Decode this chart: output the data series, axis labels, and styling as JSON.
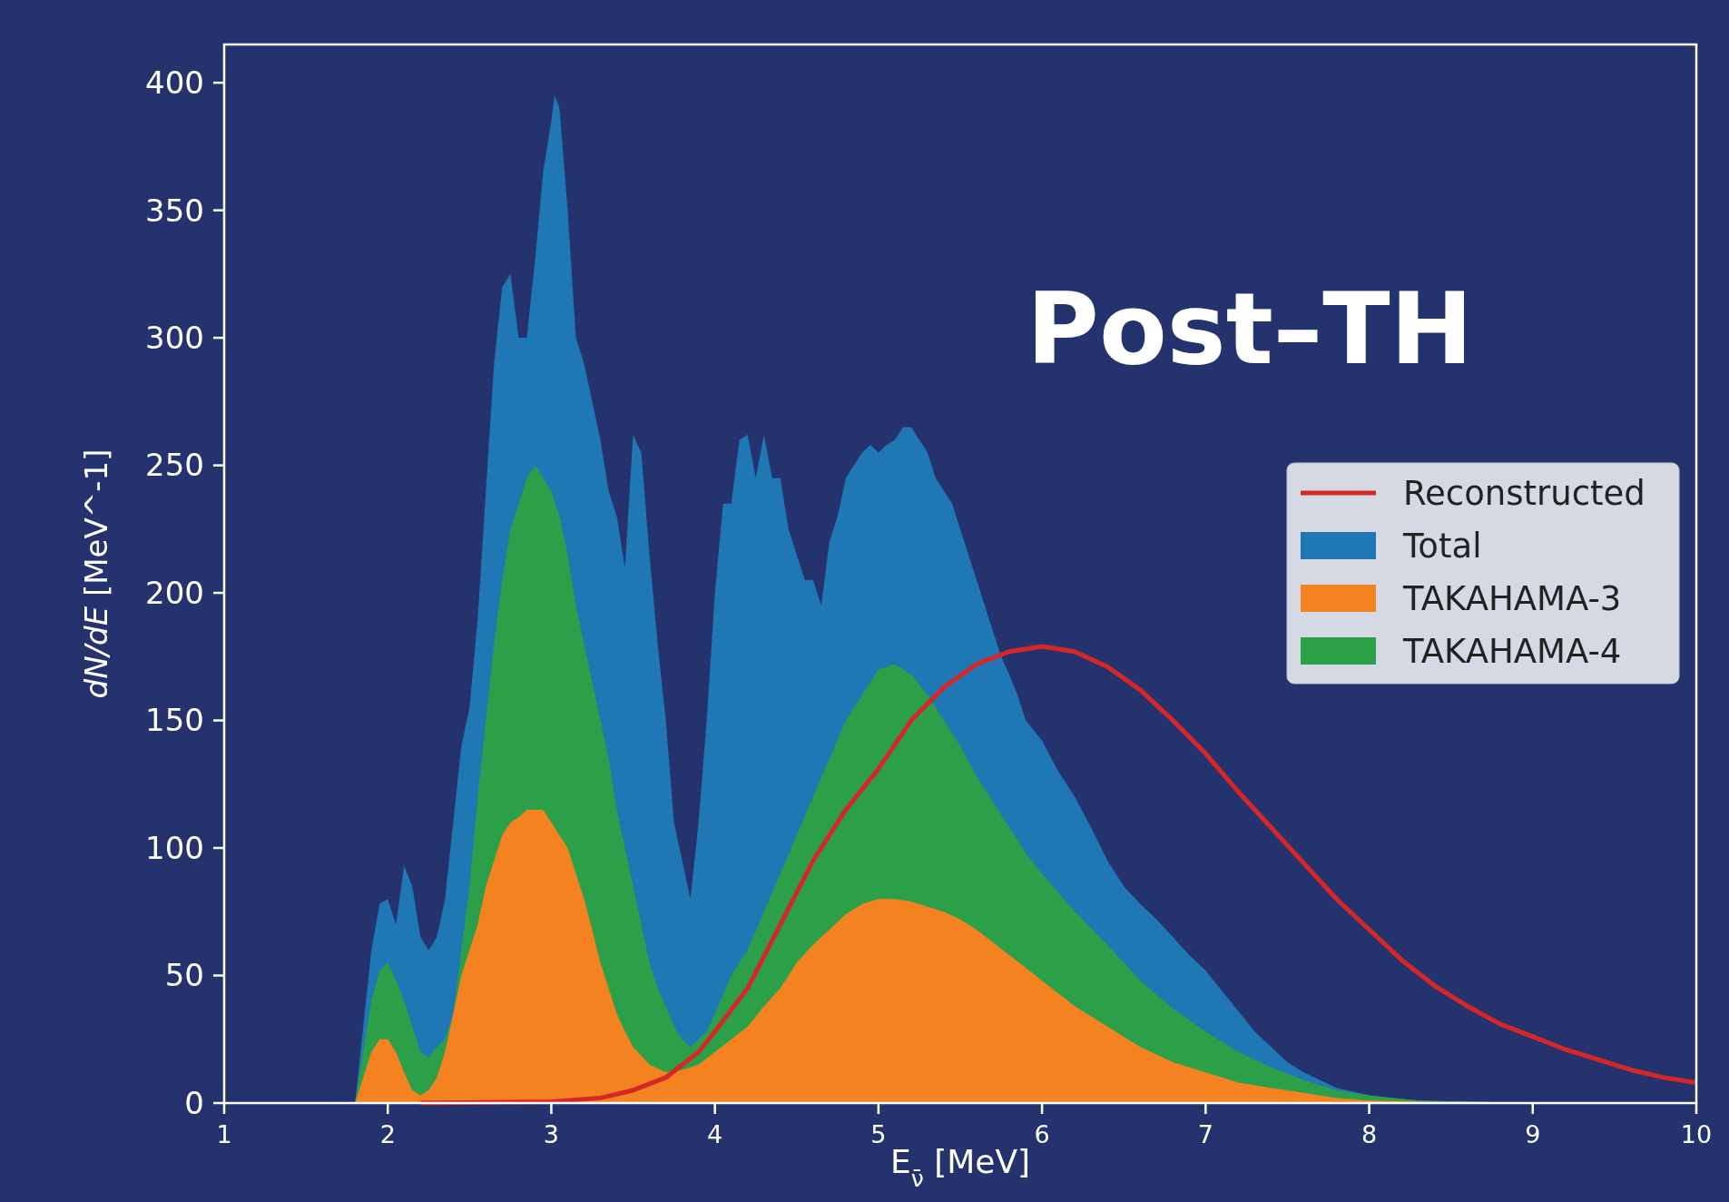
{
  "chart_data": {
    "type": "area",
    "title": "Post–TH",
    "xlabel": "E$_{ν̄}$ [MeV]",
    "ylabel": "dN/dE [MeV^-1]",
    "xlim": [
      1,
      10
    ],
    "ylim": [
      0,
      415
    ],
    "xticks": [
      1,
      2,
      3,
      4,
      5,
      6,
      7,
      8,
      9,
      10
    ],
    "yticks": [
      0,
      50,
      100,
      150,
      200,
      250,
      300,
      350,
      400
    ],
    "legend": "right",
    "grid": false,
    "series": [
      {
        "name": "Reconstructed",
        "type": "line",
        "color": "#d62728",
        "x": [
          2.2,
          3.0,
          3.3,
          3.5,
          3.7,
          3.9,
          4.0,
          4.2,
          4.4,
          4.6,
          4.8,
          5.0,
          5.2,
          5.4,
          5.6,
          5.8,
          6.0,
          6.2,
          6.4,
          6.6,
          6.8,
          7.0,
          7.2,
          7.4,
          7.6,
          7.8,
          8.0,
          8.2,
          8.4,
          8.6,
          8.8,
          9.0,
          9.2,
          9.4,
          9.6,
          9.8,
          10
        ],
        "values": [
          0,
          0.5,
          2,
          5,
          10,
          20,
          28,
          45,
          70,
          95,
          115,
          131,
          150,
          163,
          172,
          177,
          179,
          177,
          171,
          162,
          150,
          137,
          122,
          108,
          94,
          80,
          68,
          56,
          46,
          38,
          31,
          26,
          21,
          17,
          13,
          10,
          8
        ]
      },
      {
        "name": "Total",
        "color": "#1f77b4",
        "x": [
          1.8,
          1.85,
          1.9,
          1.95,
          2.0,
          2.05,
          2.1,
          2.15,
          2.2,
          2.25,
          2.3,
          2.35,
          2.4,
          2.45,
          2.5,
          2.55,
          2.6,
          2.65,
          2.7,
          2.75,
          2.8,
          2.85,
          2.9,
          2.95,
          3.0,
          3.02,
          3.05,
          3.1,
          3.15,
          3.2,
          3.25,
          3.3,
          3.35,
          3.4,
          3.45,
          3.5,
          3.55,
          3.6,
          3.65,
          3.7,
          3.75,
          3.8,
          3.85,
          3.9,
          3.95,
          4.0,
          4.05,
          4.1,
          4.15,
          4.2,
          4.25,
          4.3,
          4.35,
          4.4,
          4.45,
          4.5,
          4.55,
          4.6,
          4.65,
          4.7,
          4.75,
          4.8,
          4.85,
          4.9,
          4.95,
          5.0,
          5.05,
          5.1,
          5.15,
          5.2,
          5.25,
          5.3,
          5.35,
          5.4,
          5.45,
          5.5,
          5.55,
          5.6,
          5.65,
          5.7,
          5.75,
          5.8,
          5.85,
          5.9,
          6.0,
          6.1,
          6.2,
          6.3,
          6.4,
          6.5,
          6.6,
          6.7,
          6.8,
          6.9,
          7.0,
          7.1,
          7.2,
          7.3,
          7.4,
          7.5,
          7.6,
          7.8,
          8.0,
          8.3,
          8.6,
          9.0
        ],
        "values": [
          0,
          30,
          60,
          78,
          80,
          70,
          93,
          85,
          65,
          60,
          65,
          80,
          110,
          140,
          155,
          190,
          240,
          290,
          320,
          325,
          300,
          300,
          330,
          365,
          385,
          395,
          390,
          350,
          300,
          290,
          275,
          260,
          240,
          230,
          210,
          262,
          255,
          215,
          180,
          150,
          110,
          95,
          80,
          110,
          150,
          200,
          235,
          235,
          260,
          262,
          245,
          262,
          245,
          245,
          225,
          215,
          205,
          205,
          195,
          220,
          230,
          245,
          250,
          255,
          258,
          255,
          258,
          260,
          265,
          265,
          260,
          255,
          245,
          240,
          235,
          225,
          215,
          205,
          195,
          185,
          175,
          168,
          160,
          150,
          142,
          130,
          120,
          108,
          95,
          85,
          78,
          72,
          65,
          58,
          52,
          44,
          36,
          28,
          22,
          16,
          12,
          6,
          3,
          1,
          0.5,
          0
        ]
      },
      {
        "name": "TAKAHAMA-3",
        "color": "#f58220",
        "x": [
          1.8,
          1.85,
          1.9,
          1.95,
          2.0,
          2.05,
          2.1,
          2.15,
          2.2,
          2.25,
          2.3,
          2.35,
          2.4,
          2.45,
          2.5,
          2.55,
          2.6,
          2.65,
          2.7,
          2.75,
          2.8,
          2.85,
          2.9,
          2.95,
          3.0,
          3.05,
          3.1,
          3.15,
          3.2,
          3.25,
          3.3,
          3.35,
          3.4,
          3.45,
          3.5,
          3.6,
          3.7,
          3.8,
          3.9,
          4.0,
          4.1,
          4.2,
          4.3,
          4.4,
          4.5,
          4.6,
          4.7,
          4.8,
          4.9,
          5.0,
          5.1,
          5.2,
          5.3,
          5.4,
          5.5,
          5.6,
          5.7,
          5.8,
          5.9,
          6.0,
          6.2,
          6.4,
          6.6,
          6.8,
          7.0,
          7.2,
          7.4,
          7.6,
          7.8,
          8.0,
          8.3,
          8.6
        ],
        "values": [
          0,
          10,
          20,
          25,
          25,
          20,
          12,
          5,
          3,
          5,
          10,
          20,
          35,
          50,
          60,
          70,
          85,
          95,
          105,
          110,
          112,
          115,
          115,
          115,
          110,
          105,
          100,
          90,
          80,
          68,
          55,
          45,
          35,
          28,
          22,
          15,
          12,
          13,
          15,
          20,
          25,
          30,
          38,
          45,
          55,
          62,
          68,
          74,
          78,
          80,
          80,
          79,
          77,
          75,
          72,
          68,
          63,
          58,
          53,
          48,
          38,
          30,
          22,
          16,
          12,
          8,
          6,
          4,
          2,
          1,
          0.5,
          0
        ]
      },
      {
        "name": "TAKAHAMA-4",
        "color": "#2ca048",
        "x": [
          1.8,
          1.85,
          1.9,
          1.95,
          2.0,
          2.05,
          2.1,
          2.15,
          2.2,
          2.25,
          2.3,
          2.35,
          2.4,
          2.45,
          2.5,
          2.55,
          2.6,
          2.65,
          2.7,
          2.75,
          2.8,
          2.85,
          2.9,
          2.95,
          3.0,
          3.05,
          3.1,
          3.15,
          3.2,
          3.25,
          3.3,
          3.35,
          3.4,
          3.45,
          3.5,
          3.55,
          3.6,
          3.65,
          3.7,
          3.75,
          3.8,
          3.85,
          3.9,
          3.95,
          4.0,
          4.1,
          4.2,
          4.3,
          4.4,
          4.5,
          4.6,
          4.7,
          4.8,
          4.9,
          5.0,
          5.1,
          5.2,
          5.3,
          5.4,
          5.5,
          5.6,
          5.7,
          5.8,
          5.9,
          6.0,
          6.2,
          6.4,
          6.6,
          6.8,
          7.0,
          7.2,
          7.4,
          7.6,
          7.8,
          8.0,
          8.3,
          8.6,
          9.0
        ],
        "values": [
          0,
          20,
          40,
          52,
          55,
          48,
          40,
          30,
          20,
          18,
          22,
          25,
          35,
          60,
          85,
          120,
          150,
          180,
          205,
          225,
          235,
          245,
          250,
          245,
          240,
          230,
          215,
          195,
          180,
          165,
          150,
          135,
          115,
          100,
          85,
          70,
          55,
          45,
          38,
          30,
          25,
          22,
          25,
          28,
          35,
          50,
          60,
          75,
          90,
          105,
          120,
          135,
          150,
          160,
          170,
          172,
          168,
          160,
          150,
          140,
          128,
          118,
          108,
          98,
          90,
          75,
          62,
          48,
          37,
          28,
          20,
          14,
          9,
          5,
          3,
          1,
          0.5,
          0
        ]
      }
    ]
  }
}
